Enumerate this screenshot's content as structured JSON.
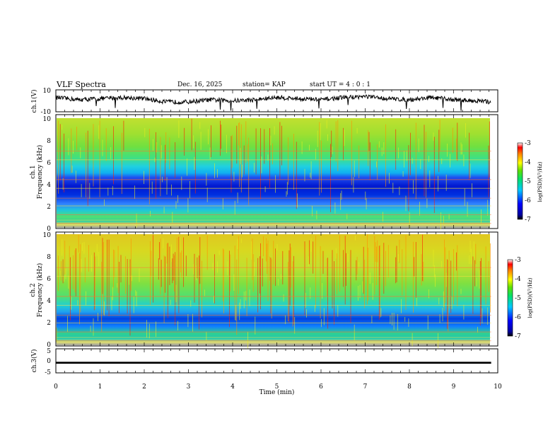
{
  "header": {
    "title": "VLF Spectra",
    "date": "Dec. 16, 2025",
    "station": "station= KAP",
    "start": "start  UT =  4 : 0  : 1"
  },
  "chart_data": [
    {
      "type": "line",
      "panel": "ch1-waveform",
      "ylabel": "ch.1(V)",
      "ylim": [
        -10,
        10
      ],
      "yticks": [
        "10",
        "-10"
      ],
      "xlim": [
        0,
        10
      ],
      "note": "noisy envelope trace hovering around 0..+5 V with occasional dips",
      "series": [
        {
          "name": "ch.1",
          "x": [
            0,
            0.5,
            1,
            1.5,
            2,
            2.5,
            3,
            3.5,
            4,
            4.5,
            5,
            5.5,
            6,
            6.5,
            7,
            7.5,
            8,
            8.5,
            9,
            9.5,
            9.85
          ],
          "values": [
            3,
            1,
            2,
            3,
            2,
            -1,
            -1,
            1,
            0,
            1,
            3,
            2,
            1,
            3,
            4,
            2,
            1,
            3,
            1,
            0,
            -1
          ]
        }
      ]
    },
    {
      "type": "heatmap",
      "panel": "ch1-spectrogram",
      "ylabel": "Frequency (kHz)",
      "channel_label": "ch.1",
      "ylim": [
        0,
        10
      ],
      "yticks": [
        "0",
        "2",
        "4",
        "6",
        "8",
        "10"
      ],
      "xlim": [
        0,
        10
      ],
      "x_end": 9.85,
      "colorbar": {
        "label": "log(PSD)(V²/Hz)",
        "range": [
          -7,
          -3
        ],
        "ticks": [
          "-3",
          "-4",
          "-5",
          "-6",
          "-7"
        ]
      },
      "bands_khz": [
        {
          "from": 0,
          "to": 1.0,
          "level": -4.5
        },
        {
          "from": 1.0,
          "to": 2.2,
          "level": -5.0
        },
        {
          "from": 2.2,
          "to": 3.2,
          "level": -5.6
        },
        {
          "from": 3.2,
          "to": 5.0,
          "level": -6.0
        },
        {
          "from": 5.0,
          "to": 6.5,
          "level": -5.0
        },
        {
          "from": 6.5,
          "to": 10,
          "level": -4.4
        }
      ]
    },
    {
      "type": "heatmap",
      "panel": "ch2-spectrogram",
      "ylabel": "Frequency (kHz)",
      "channel_label": "ch.2",
      "ylim": [
        0,
        10
      ],
      "yticks": [
        "0",
        "2",
        "4",
        "6",
        "8",
        "10"
      ],
      "xlim": [
        0,
        10
      ],
      "x_end": 9.85,
      "colorbar": {
        "label": "log(PSD)(V²/Hz)",
        "range": [
          -7,
          -3
        ],
        "ticks": [
          "-3",
          "-4",
          "-5",
          "-6",
          "-7"
        ]
      },
      "bands_khz": [
        {
          "from": 0,
          "to": 1.0,
          "level": -4.8
        },
        {
          "from": 1.0,
          "to": 2.0,
          "level": -5.1
        },
        {
          "from": 2.0,
          "to": 3.0,
          "level": -5.8
        },
        {
          "from": 3.0,
          "to": 4.0,
          "level": -5.3
        },
        {
          "from": 4.0,
          "to": 6.0,
          "level": -4.6
        },
        {
          "from": 6.0,
          "to": 10,
          "level": -3.8
        }
      ]
    },
    {
      "type": "line",
      "panel": "ch3-waveform",
      "ylabel": "ch.3(V)",
      "ylim": [
        -5,
        5
      ],
      "yticks": [
        "5",
        "0",
        "-5"
      ],
      "xlim": [
        0,
        10
      ],
      "xlabel": "Time  (min)",
      "xticks": [
        "0",
        "1",
        "2",
        "3",
        "4",
        "5",
        "6",
        "7",
        "8",
        "9",
        "10"
      ],
      "series": [
        {
          "name": "ch.3",
          "x": [
            0,
            9.85
          ],
          "values": [
            -0.8,
            -0.8
          ],
          "band_min": -1.2,
          "band_max": -0.4
        }
      ]
    }
  ]
}
